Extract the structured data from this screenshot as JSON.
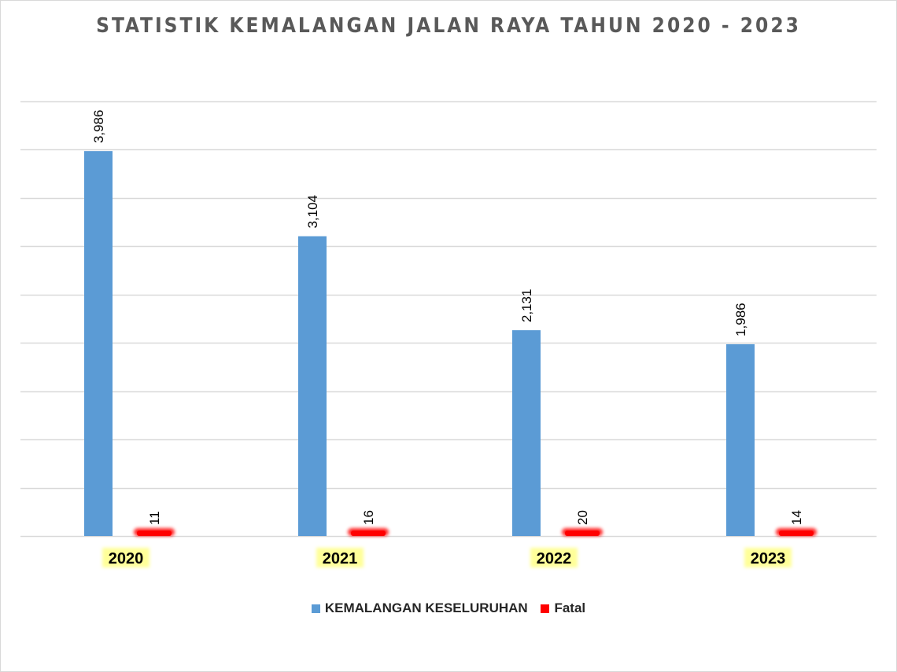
{
  "chart_data": {
    "type": "bar",
    "title": "STATISTIK KEMALANGAN JALAN RAYA TAHUN 2020 - 2023",
    "categories": [
      "2020",
      "2021",
      "2022",
      "2023"
    ],
    "series": [
      {
        "name": "KEMALANGAN KESELURUHAN",
        "values": [
          3986,
          3104,
          2131,
          1986
        ],
        "labels": [
          "3,986",
          "3,104",
          "2,131",
          "1,986"
        ],
        "color": "#5b9bd5"
      },
      {
        "name": "Fatal",
        "values": [
          11,
          16,
          20,
          14
        ],
        "labels": [
          "11",
          "16",
          "20",
          "14"
        ],
        "color": "#ff0000"
      }
    ],
    "ylim": [
      0,
      4500
    ],
    "grid": true,
    "legend_position": "bottom",
    "category_label_highlight": "#ffff99"
  }
}
